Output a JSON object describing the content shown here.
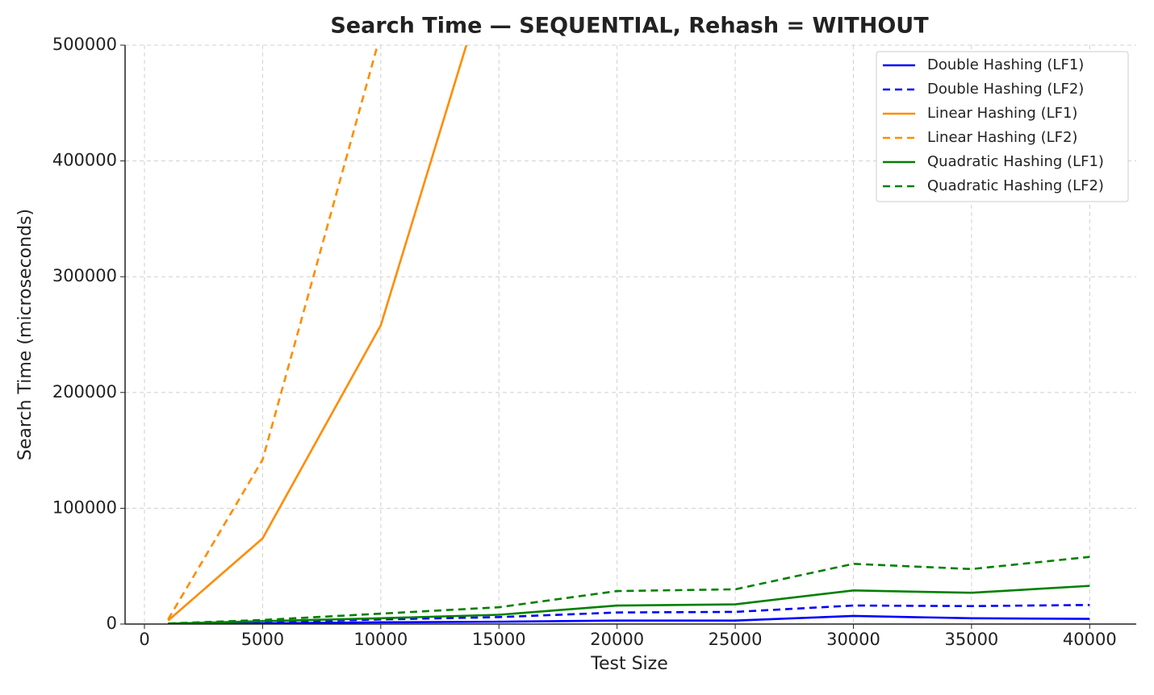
{
  "chart_data": {
    "type": "line",
    "title": "Search Time — SEQUENTIAL, Rehash = WITHOUT",
    "x_label": "Test Size",
    "y_label": "Search Time (microseconds)",
    "x": [
      1000,
      5000,
      10000,
      15000,
      20000,
      25000,
      30000,
      35000,
      40000
    ],
    "series": [
      {
        "name": "Double Hashing (LF1)",
        "color": "#0000ff",
        "dash": "solid",
        "values": [
          0,
          500,
          1500,
          2000,
          3000,
          3000,
          7000,
          5000,
          4500
        ]
      },
      {
        "name": "Double Hashing (LF2)",
        "color": "#0000ff",
        "dash": "dashed",
        "values": [
          200,
          1500,
          4000,
          6000,
          10000,
          10500,
          16000,
          15500,
          16500
        ]
      },
      {
        "name": "Linear Hashing (LF1)",
        "color": "#ff8c00",
        "dash": "solid",
        "values": [
          3000,
          74000,
          258000,
          592000,
          null,
          null,
          null,
          null,
          null
        ]
      },
      {
        "name": "Linear Hashing (LF2)",
        "color": "#ff8c00",
        "dash": "dashed",
        "values": [
          4000,
          142000,
          510000,
          null,
          null,
          null,
          null,
          null,
          null
        ]
      },
      {
        "name": "Quadratic Hashing (LF1)",
        "color": "#008000",
        "dash": "solid",
        "values": [
          300,
          2500,
          5000,
          8000,
          16000,
          17000,
          29000,
          27000,
          33000
        ]
      },
      {
        "name": "Quadratic Hashing (LF2)",
        "color": "#008000",
        "dash": "dashed",
        "values": [
          500,
          3500,
          9000,
          14500,
          28500,
          30000,
          52000,
          47500,
          58000
        ]
      }
    ],
    "xlim": [
      -820,
      41970
    ],
    "xticks": [
      0,
      5000,
      10000,
      15000,
      20000,
      25000,
      30000,
      35000,
      40000
    ],
    "ylim": [
      0,
      500000
    ],
    "yticks": [
      0,
      100000,
      200000,
      300000,
      400000,
      500000
    ],
    "grid": true,
    "legend": "upper right"
  }
}
